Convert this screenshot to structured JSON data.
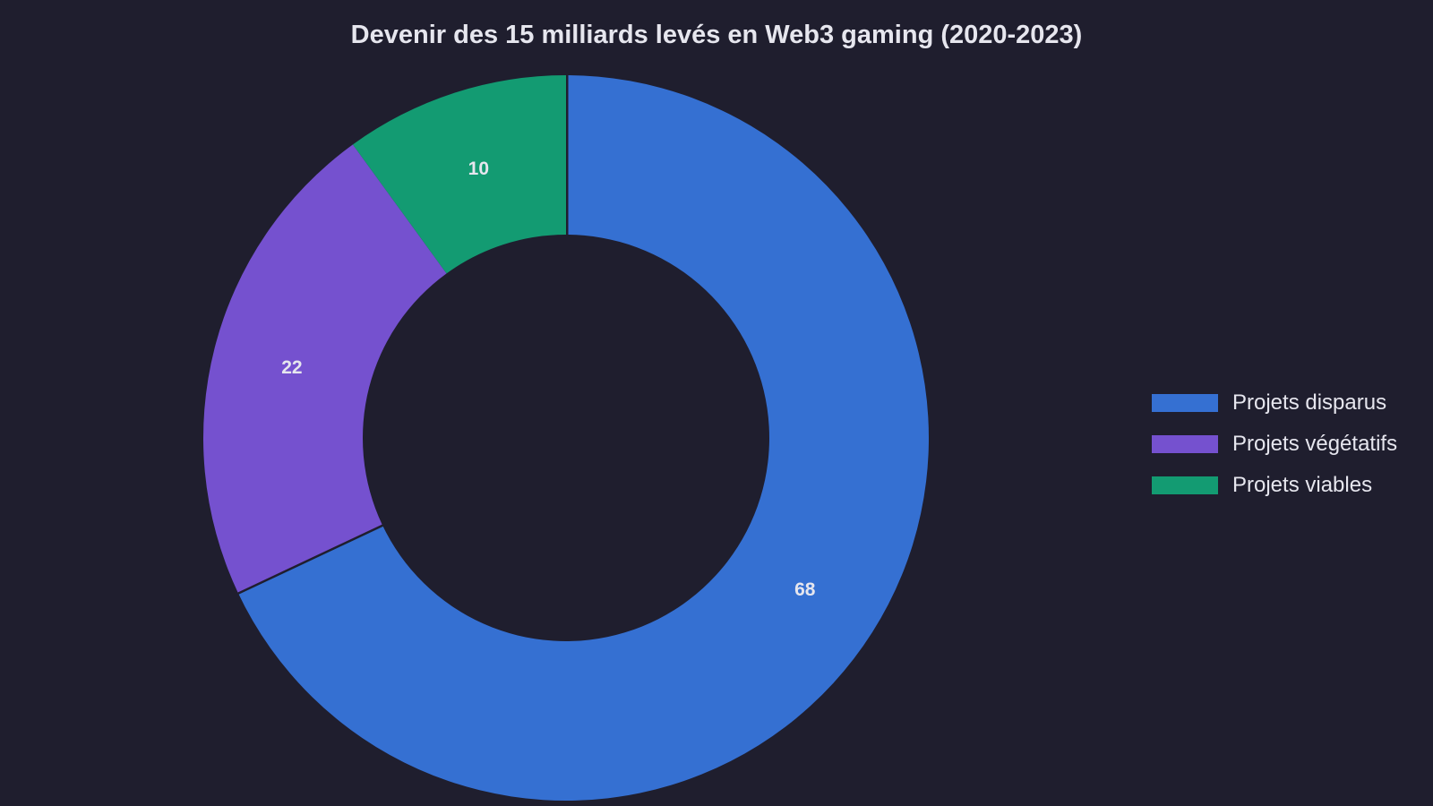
{
  "chart_data": {
    "type": "pie",
    "variant": "donut",
    "title": "Devenir des 15 milliards levés en Web3 gaming (2020-2023)",
    "categories": [
      "Projets disparus",
      "Projets végétatifs",
      "Projets viables"
    ],
    "values": [
      68,
      22,
      10
    ],
    "colors": [
      "#3570d2",
      "#7551cf",
      "#139b72"
    ],
    "data_labels": [
      "68",
      "22",
      "10"
    ],
    "legend": {
      "placement": "right",
      "entries": [
        "Projets disparus",
        "Projets végétatifs",
        "Projets viables"
      ]
    },
    "start": "top",
    "direction": "clockwise"
  }
}
